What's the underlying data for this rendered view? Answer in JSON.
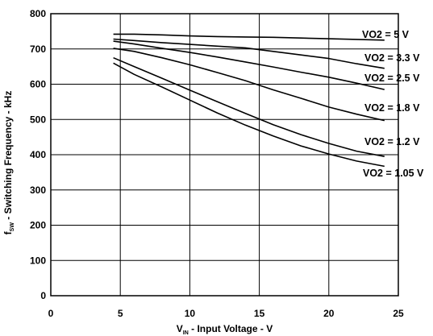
{
  "chart_data": {
    "type": "line",
    "title": "",
    "xlabel": {
      "main": "V",
      "sub": "IN",
      "rest": " - Input Voltage - V"
    },
    "ylabel": {
      "pre": "f",
      "sub": "SW",
      "rest": " - Switching Frequency - kHz"
    },
    "xlim": [
      0,
      25
    ],
    "ylim": [
      0,
      800
    ],
    "xticks": [
      0,
      5,
      10,
      15,
      20,
      25
    ],
    "yticks": [
      0,
      100,
      200,
      300,
      400,
      500,
      600,
      700,
      800
    ],
    "grid": true,
    "legend": "inline labels at right",
    "series": [
      {
        "name": "VO2 = 5 V",
        "x": [
          4.5,
          6,
          8,
          10,
          12,
          14,
          16,
          18,
          20,
          22,
          24
        ],
        "y": [
          742,
          742,
          740,
          737,
          735,
          734,
          733,
          731,
          729,
          727,
          725
        ]
      },
      {
        "name": "VO2 = 3.3 V",
        "x": [
          4.5,
          6,
          8,
          10,
          12,
          14,
          16,
          18,
          20,
          22,
          24
        ],
        "y": [
          728,
          724,
          718,
          713,
          708,
          703,
          693,
          683,
          673,
          658,
          645
        ]
      },
      {
        "name": "VO2 = 2.5 V",
        "x": [
          4.5,
          6,
          8,
          10,
          12,
          14,
          16,
          18,
          20,
          22,
          24
        ],
        "y": [
          722,
          714,
          702,
          690,
          677,
          663,
          649,
          634,
          620,
          603,
          585
        ]
      },
      {
        "name": "VO2 = 1.8 V",
        "x": [
          4.5,
          6,
          8,
          10,
          12,
          14,
          16,
          18,
          20,
          22,
          24
        ],
        "y": [
          702,
          693,
          675,
          655,
          633,
          610,
          584,
          560,
          535,
          515,
          497
        ]
      },
      {
        "name": "VO2 = 1.2 V",
        "x": [
          4.5,
          6,
          8,
          10,
          12,
          14,
          16,
          18,
          20,
          22,
          24
        ],
        "y": [
          675,
          650,
          617,
          583,
          550,
          517,
          485,
          457,
          432,
          410,
          395
        ]
      },
      {
        "name": "VO2 = 1.05 V",
        "x": [
          4.5,
          6,
          8,
          10,
          12,
          14,
          16,
          18,
          20,
          22,
          24
        ],
        "y": [
          660,
          628,
          592,
          555,
          518,
          484,
          453,
          425,
          402,
          382,
          367
        ]
      }
    ]
  }
}
